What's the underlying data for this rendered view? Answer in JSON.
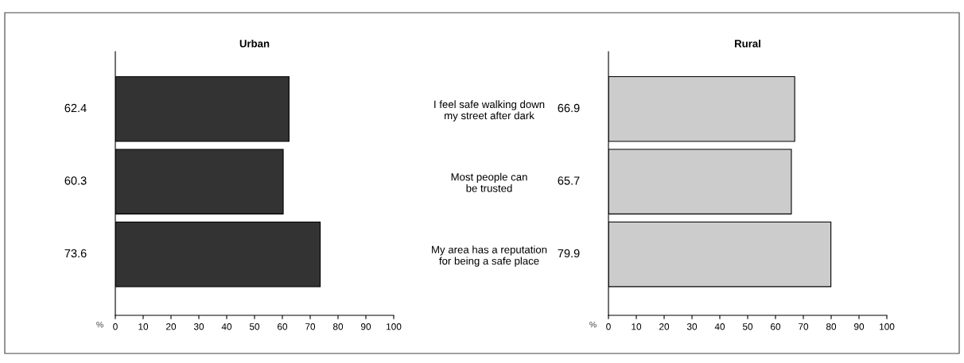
{
  "chart_data": [
    {
      "type": "bar",
      "orientation": "horizontal",
      "title": "Urban",
      "xlabel": "%",
      "categories": [
        null,
        null,
        null
      ],
      "values": [
        62.4,
        60.3,
        73.6
      ],
      "color": "#333333",
      "xlim": [
        0,
        100
      ],
      "xticks": [
        0,
        10,
        20,
        30,
        40,
        50,
        60,
        70,
        80,
        90,
        100
      ],
      "data_labels": true,
      "grid": false,
      "legend": false
    },
    {
      "type": "bar",
      "orientation": "horizontal",
      "title": "Rural",
      "xlabel": "%",
      "categories": [
        "I feel safe walking down\nmy street after dark",
        "Most people can\nbe trusted",
        "My area has a reputation\nfor being a safe place"
      ],
      "values": [
        66.9,
        65.7,
        79.9
      ],
      "color": "#cccccc",
      "xlim": [
        0,
        100
      ],
      "xticks": [
        0,
        10,
        20,
        30,
        40,
        50,
        60,
        70,
        80,
        90,
        100
      ],
      "data_labels": true,
      "grid": false,
      "legend": false
    }
  ]
}
